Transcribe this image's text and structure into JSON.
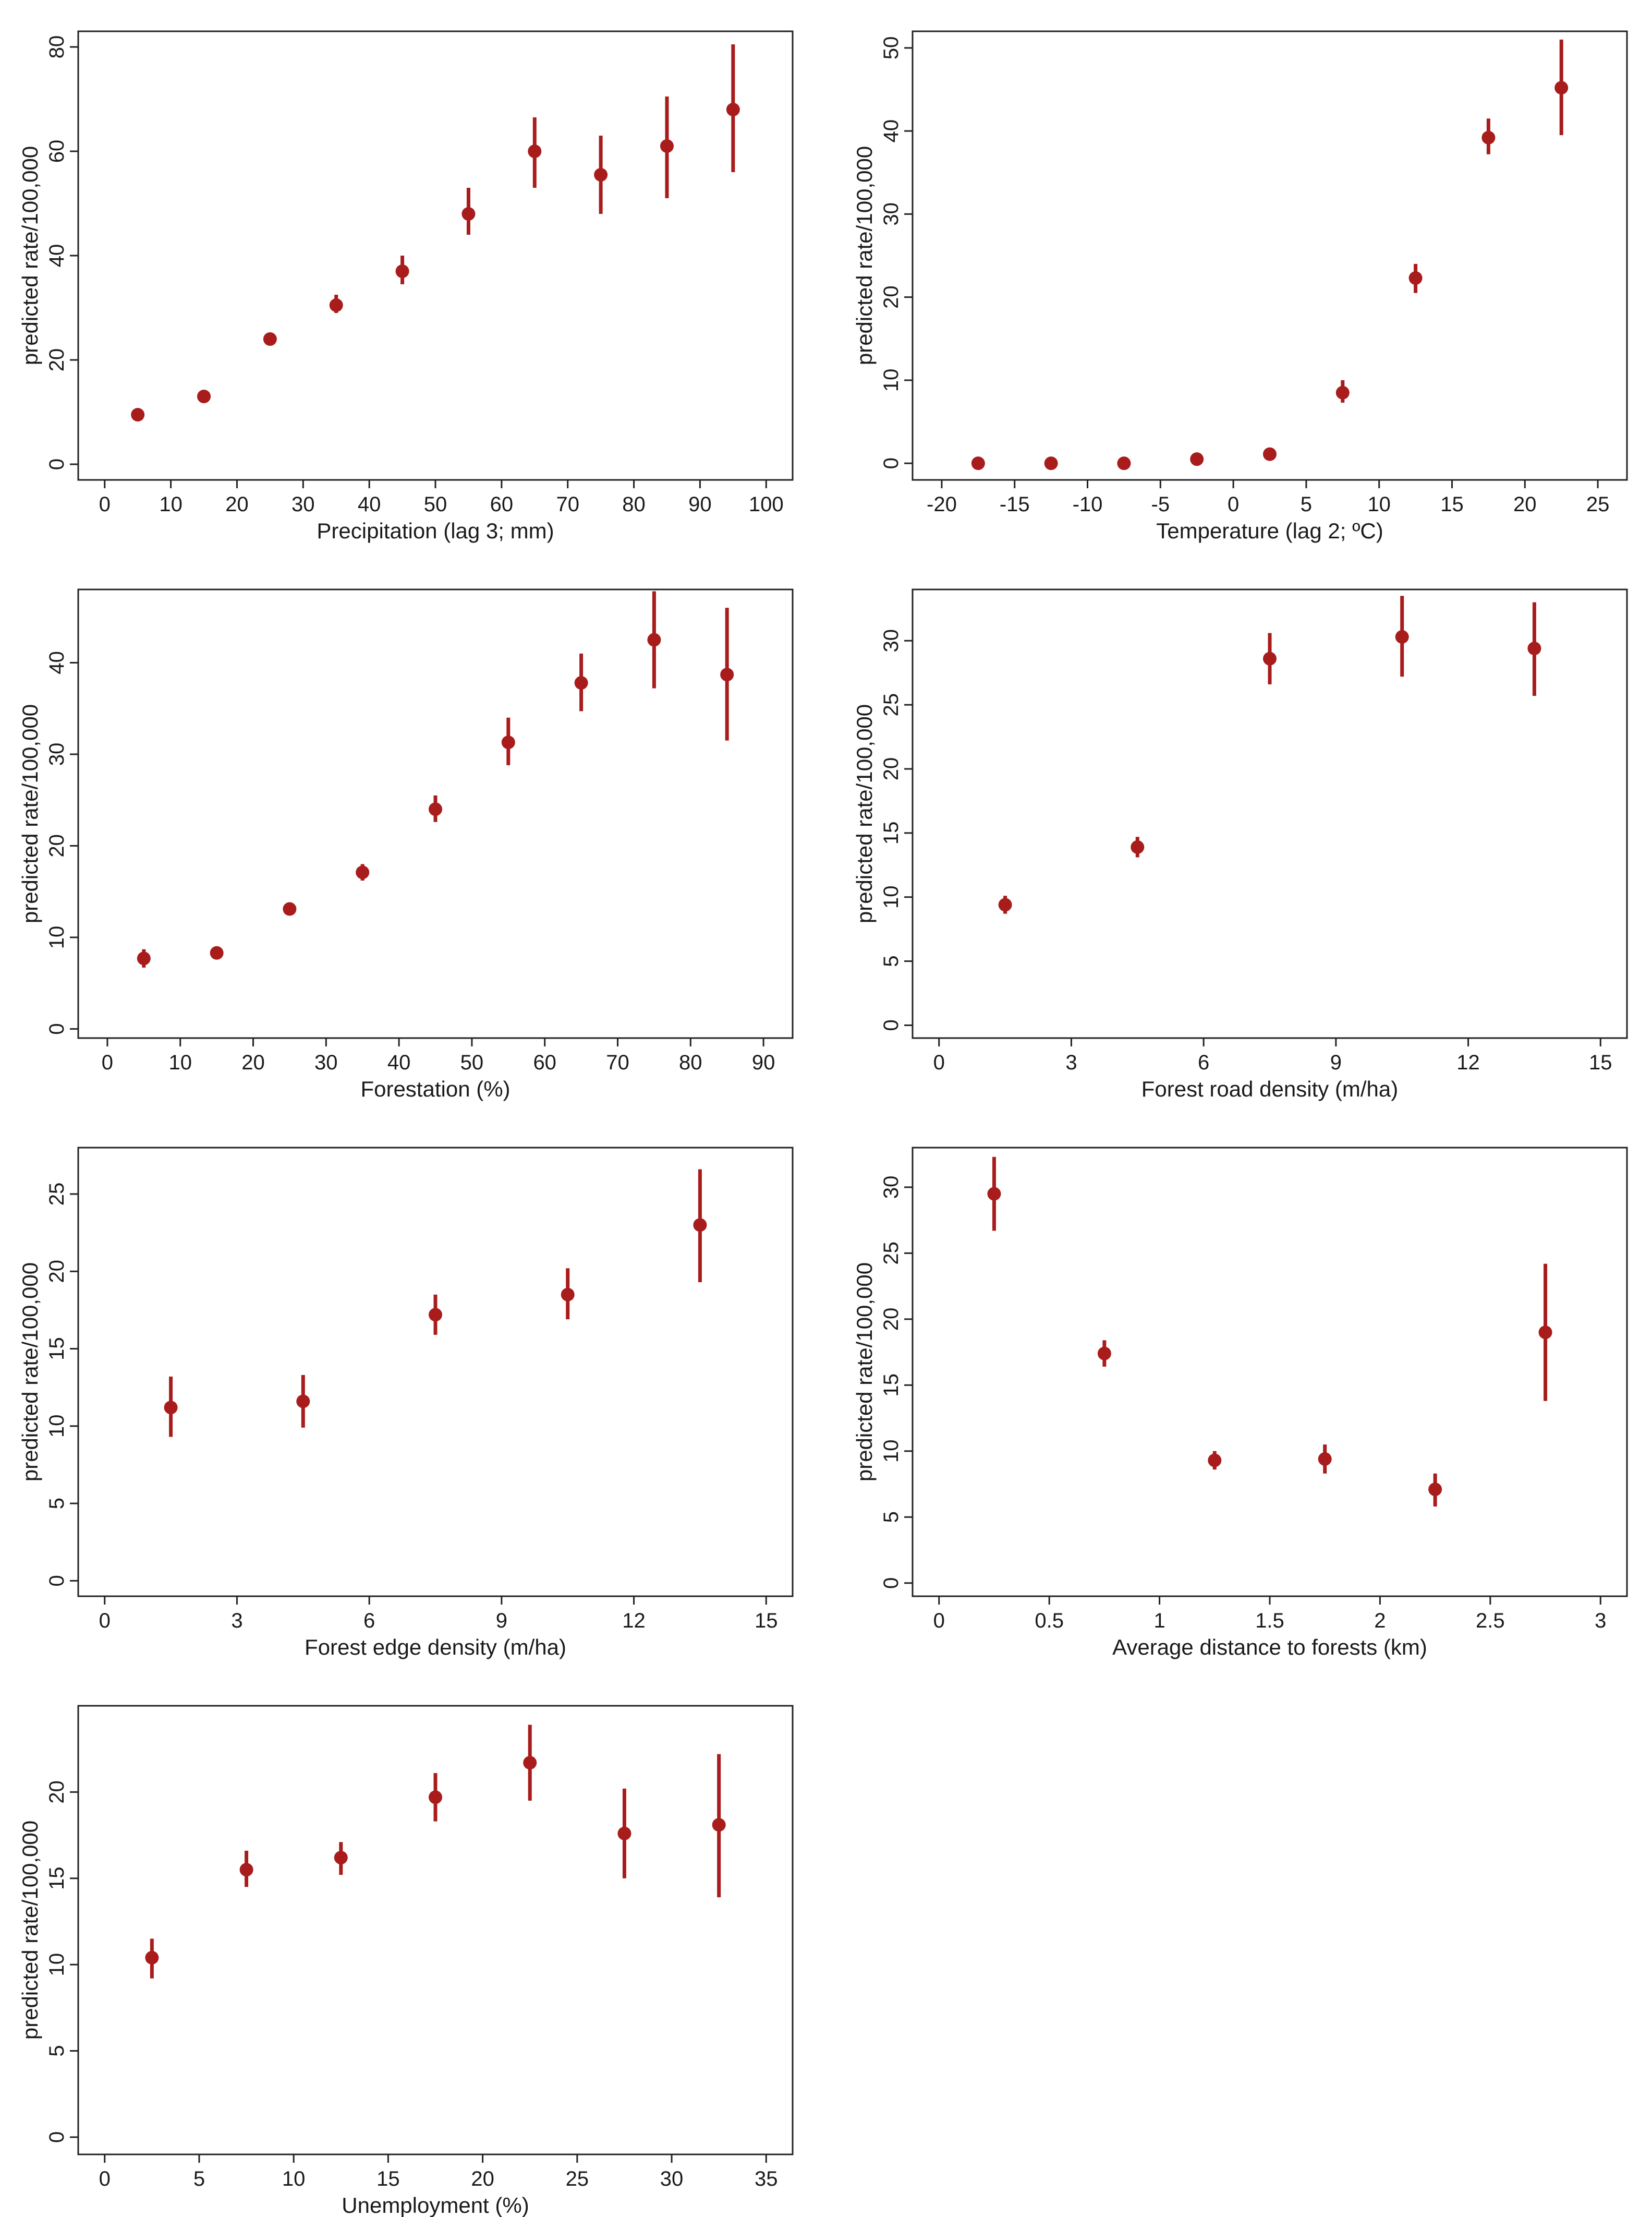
{
  "colors": {
    "marker": "#a81c1c",
    "axis": "#222222",
    "background": "#ffffff"
  },
  "chart_data": [
    {
      "type": "scatter",
      "style": "point estimates with 95% confidence interval bars",
      "title": "",
      "xlabel": "Precipitation (lag 3; mm)",
      "ylabel": "predicted rate/100,000",
      "xlim": [
        -4,
        104
      ],
      "ylim": [
        -3,
        83
      ],
      "xticks": [
        0,
        10,
        20,
        30,
        40,
        50,
        60,
        70,
        80,
        90,
        100
      ],
      "xtick_labels": [
        "0",
        "10",
        "20",
        "30",
        "40",
        "50",
        "60",
        "70",
        "80",
        "90",
        "100"
      ],
      "yticks": [
        0,
        20,
        40,
        60,
        80
      ],
      "ytick_labels": [
        "0",
        "20",
        "40",
        "60",
        "80"
      ],
      "grid": false,
      "points": [
        {
          "x": 5,
          "y": 9.5,
          "lo": 8.5,
          "hi": 10.5
        },
        {
          "x": 15,
          "y": 13,
          "lo": 12.2,
          "hi": 13.8
        },
        {
          "x": 25,
          "y": 24,
          "lo": 23,
          "hi": 25
        },
        {
          "x": 35,
          "y": 30.5,
          "lo": 29,
          "hi": 32.5
        },
        {
          "x": 45,
          "y": 37,
          "lo": 34.5,
          "hi": 40
        },
        {
          "x": 55,
          "y": 48,
          "lo": 44,
          "hi": 53
        },
        {
          "x": 65,
          "y": 60,
          "lo": 53,
          "hi": 66.5
        },
        {
          "x": 75,
          "y": 55.5,
          "lo": 48,
          "hi": 63
        },
        {
          "x": 85,
          "y": 61,
          "lo": 51,
          "hi": 70.5
        },
        {
          "x": 95,
          "y": 68,
          "lo": 56,
          "hi": 80.5
        }
      ]
    },
    {
      "type": "scatter",
      "style": "point estimates with 95% confidence interval bars",
      "title": "",
      "xlabel": "Temperature (lag 2; ºC)",
      "ylabel": "predicted rate/100,000",
      "xlim": [
        -22,
        27
      ],
      "ylim": [
        -2,
        52
      ],
      "xticks": [
        -20,
        -15,
        -10,
        -5,
        0,
        5,
        10,
        15,
        20,
        25
      ],
      "xtick_labels": [
        "-20",
        "-15",
        "-10",
        "-5",
        "0",
        "5",
        "10",
        "15",
        "20",
        "25"
      ],
      "yticks": [
        0,
        10,
        20,
        30,
        40,
        50
      ],
      "ytick_labels": [
        "0",
        "10",
        "20",
        "30",
        "40",
        "50"
      ],
      "grid": false,
      "points": [
        {
          "x": -17.5,
          "y": 0,
          "lo": 0,
          "hi": 0
        },
        {
          "x": -12.5,
          "y": 0,
          "lo": 0,
          "hi": 0
        },
        {
          "x": -7.5,
          "y": 0,
          "lo": 0,
          "hi": 0
        },
        {
          "x": -2.5,
          "y": 0.5,
          "lo": 0.3,
          "hi": 0.7
        },
        {
          "x": 2.5,
          "y": 1.1,
          "lo": 0.8,
          "hi": 1.4
        },
        {
          "x": 7.5,
          "y": 8.5,
          "lo": 7.3,
          "hi": 10
        },
        {
          "x": 12.5,
          "y": 22.3,
          "lo": 20.5,
          "hi": 24
        },
        {
          "x": 17.5,
          "y": 39.2,
          "lo": 37.2,
          "hi": 41.5
        },
        {
          "x": 22.5,
          "y": 45.2,
          "lo": 39.5,
          "hi": 51
        }
      ]
    },
    {
      "type": "scatter",
      "style": "point estimates with 95% confidence interval bars",
      "title": "",
      "xlabel": "Forestation (%)",
      "ylabel": "predicted rate/100,000",
      "xlim": [
        -4,
        94
      ],
      "ylim": [
        -1,
        48
      ],
      "xticks": [
        0,
        10,
        20,
        30,
        40,
        50,
        60,
        70,
        80,
        90
      ],
      "xtick_labels": [
        "0",
        "10",
        "20",
        "30",
        "40",
        "50",
        "60",
        "70",
        "80",
        "90"
      ],
      "yticks": [
        0,
        10,
        20,
        30,
        40
      ],
      "ytick_labels": [
        "0",
        "10",
        "20",
        "30",
        "40"
      ],
      "grid": false,
      "points": [
        {
          "x": 5,
          "y": 7.7,
          "lo": 6.7,
          "hi": 8.7
        },
        {
          "x": 15,
          "y": 8.3,
          "lo": 7.8,
          "hi": 8.8
        },
        {
          "x": 25,
          "y": 13.1,
          "lo": 12.4,
          "hi": 13.8
        },
        {
          "x": 35,
          "y": 17.1,
          "lo": 16.2,
          "hi": 18
        },
        {
          "x": 45,
          "y": 24,
          "lo": 22.6,
          "hi": 25.5
        },
        {
          "x": 55,
          "y": 31.3,
          "lo": 28.8,
          "hi": 34
        },
        {
          "x": 65,
          "y": 37.8,
          "lo": 34.7,
          "hi": 41
        },
        {
          "x": 75,
          "y": 42.5,
          "lo": 37.2,
          "hi": 47.8
        },
        {
          "x": 85,
          "y": 38.7,
          "lo": 31.5,
          "hi": 46
        }
      ]
    },
    {
      "type": "scatter",
      "style": "point estimates with 95% confidence interval bars",
      "title": "",
      "xlabel": "Forest road density (m/ha)",
      "ylabel": "predicted rate/100,000",
      "xlim": [
        -0.6,
        15.6
      ],
      "ylim": [
        -1,
        34
      ],
      "xticks": [
        0,
        3,
        6,
        9,
        12,
        15
      ],
      "xtick_labels": [
        "0",
        "3",
        "6",
        "9",
        "12",
        "15"
      ],
      "yticks": [
        0,
        5,
        10,
        15,
        20,
        25,
        30
      ],
      "ytick_labels": [
        "0",
        "5",
        "10",
        "15",
        "20",
        "25",
        "30"
      ],
      "grid": false,
      "points": [
        {
          "x": 1.5,
          "y": 9.4,
          "lo": 8.7,
          "hi": 10.1
        },
        {
          "x": 4.5,
          "y": 13.9,
          "lo": 13.1,
          "hi": 14.7
        },
        {
          "x": 7.5,
          "y": 28.6,
          "lo": 26.6,
          "hi": 30.6
        },
        {
          "x": 10.5,
          "y": 30.3,
          "lo": 27.2,
          "hi": 33.5
        },
        {
          "x": 13.5,
          "y": 29.4,
          "lo": 25.7,
          "hi": 33
        }
      ]
    },
    {
      "type": "scatter",
      "style": "point estimates with 95% confidence interval bars",
      "title": "",
      "xlabel": "Forest edge density (m/ha)",
      "ylabel": "predicted rate/100,000",
      "xlim": [
        -0.6,
        15.6
      ],
      "ylim": [
        -1,
        28
      ],
      "xticks": [
        0,
        3,
        6,
        9,
        12,
        15
      ],
      "xtick_labels": [
        "0",
        "3",
        "6",
        "9",
        "12",
        "15"
      ],
      "yticks": [
        0,
        5,
        10,
        15,
        20,
        25
      ],
      "ytick_labels": [
        "0",
        "5",
        "10",
        "15",
        "20",
        "25"
      ],
      "grid": false,
      "points": [
        {
          "x": 1.5,
          "y": 11.2,
          "lo": 9.3,
          "hi": 13.2
        },
        {
          "x": 4.5,
          "y": 11.6,
          "lo": 9.9,
          "hi": 13.3
        },
        {
          "x": 7.5,
          "y": 17.2,
          "lo": 15.9,
          "hi": 18.5
        },
        {
          "x": 10.5,
          "y": 18.5,
          "lo": 16.9,
          "hi": 20.2
        },
        {
          "x": 13.5,
          "y": 23,
          "lo": 19.3,
          "hi": 26.6
        }
      ]
    },
    {
      "type": "scatter",
      "style": "point estimates with 95% confidence interval bars",
      "title": "",
      "xlabel": "Average distance to forests (km)",
      "ylabel": "predicted rate/100,000",
      "xlim": [
        -0.12,
        3.12
      ],
      "ylim": [
        -1,
        33
      ],
      "xticks": [
        0,
        0.5,
        1,
        1.5,
        2,
        2.5,
        3
      ],
      "xtick_labels": [
        "0",
        "0.5",
        "1",
        "1.5",
        "2",
        "2.5",
        "3"
      ],
      "yticks": [
        0,
        5,
        10,
        15,
        20,
        25,
        30
      ],
      "ytick_labels": [
        "0",
        "5",
        "10",
        "15",
        "20",
        "25",
        "30"
      ],
      "grid": false,
      "points": [
        {
          "x": 0.25,
          "y": 29.5,
          "lo": 26.7,
          "hi": 32.3
        },
        {
          "x": 0.75,
          "y": 17.4,
          "lo": 16.4,
          "hi": 18.4
        },
        {
          "x": 1.25,
          "y": 9.3,
          "lo": 8.6,
          "hi": 10
        },
        {
          "x": 1.75,
          "y": 9.4,
          "lo": 8.3,
          "hi": 10.5
        },
        {
          "x": 2.25,
          "y": 7.1,
          "lo": 5.8,
          "hi": 8.3
        },
        {
          "x": 2.75,
          "y": 19,
          "lo": 13.8,
          "hi": 24.2
        }
      ]
    },
    {
      "type": "scatter",
      "style": "point estimates with 95% confidence interval bars",
      "title": "",
      "xlabel": "Unemployment (%)",
      "ylabel": "predicted rate/100,000",
      "xlim": [
        -1.4,
        36.4
      ],
      "ylim": [
        -1,
        25
      ],
      "xticks": [
        0,
        5,
        10,
        15,
        20,
        25,
        30,
        35
      ],
      "xtick_labels": [
        "0",
        "5",
        "10",
        "15",
        "20",
        "25",
        "30",
        "35"
      ],
      "yticks": [
        0,
        5,
        10,
        15,
        20
      ],
      "ytick_labels": [
        "0",
        "5",
        "10",
        "15",
        "20"
      ],
      "grid": false,
      "points": [
        {
          "x": 2.5,
          "y": 10.4,
          "lo": 9.2,
          "hi": 11.5
        },
        {
          "x": 7.5,
          "y": 15.5,
          "lo": 14.5,
          "hi": 16.6
        },
        {
          "x": 12.5,
          "y": 16.2,
          "lo": 15.2,
          "hi": 17.1
        },
        {
          "x": 17.5,
          "y": 19.7,
          "lo": 18.3,
          "hi": 21.1
        },
        {
          "x": 22.5,
          "y": 21.7,
          "lo": 19.5,
          "hi": 23.9
        },
        {
          "x": 27.5,
          "y": 17.6,
          "lo": 15,
          "hi": 20.2
        },
        {
          "x": 32.5,
          "y": 18.1,
          "lo": 13.9,
          "hi": 22.2
        }
      ]
    }
  ]
}
